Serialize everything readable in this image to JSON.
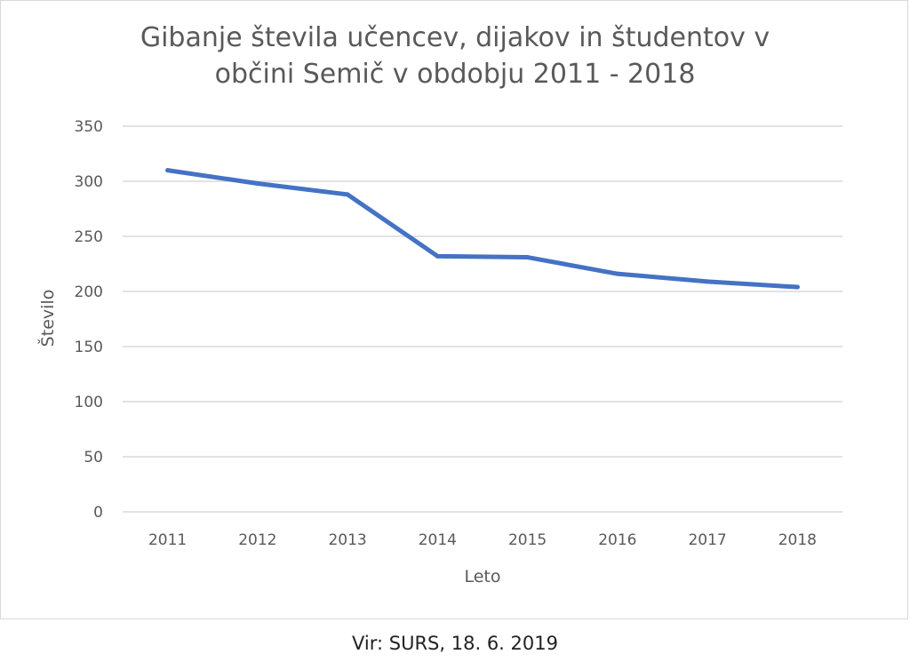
{
  "chart_data": {
    "type": "line",
    "title_lines": [
      "Gibanje števila učencev, dijakov in študentov v",
      "občini Semič v obdobju 2011 - 2018"
    ],
    "xlabel": "Leto",
    "ylabel": "Število",
    "categories": [
      "2011",
      "2012",
      "2013",
      "2014",
      "2015",
      "2016",
      "2017",
      "2018"
    ],
    "series": [
      {
        "values": [
          310,
          298,
          288,
          232,
          231,
          216,
          209,
          204
        ],
        "color": "#4472c4"
      }
    ],
    "ylim": [
      0,
      350
    ],
    "yticks": [
      "0",
      "50",
      "100",
      "150",
      "200",
      "250",
      "300",
      "350"
    ],
    "grid": true,
    "legend": "none"
  },
  "source_caption": "Vir: SURS, 18. 6. 2019"
}
